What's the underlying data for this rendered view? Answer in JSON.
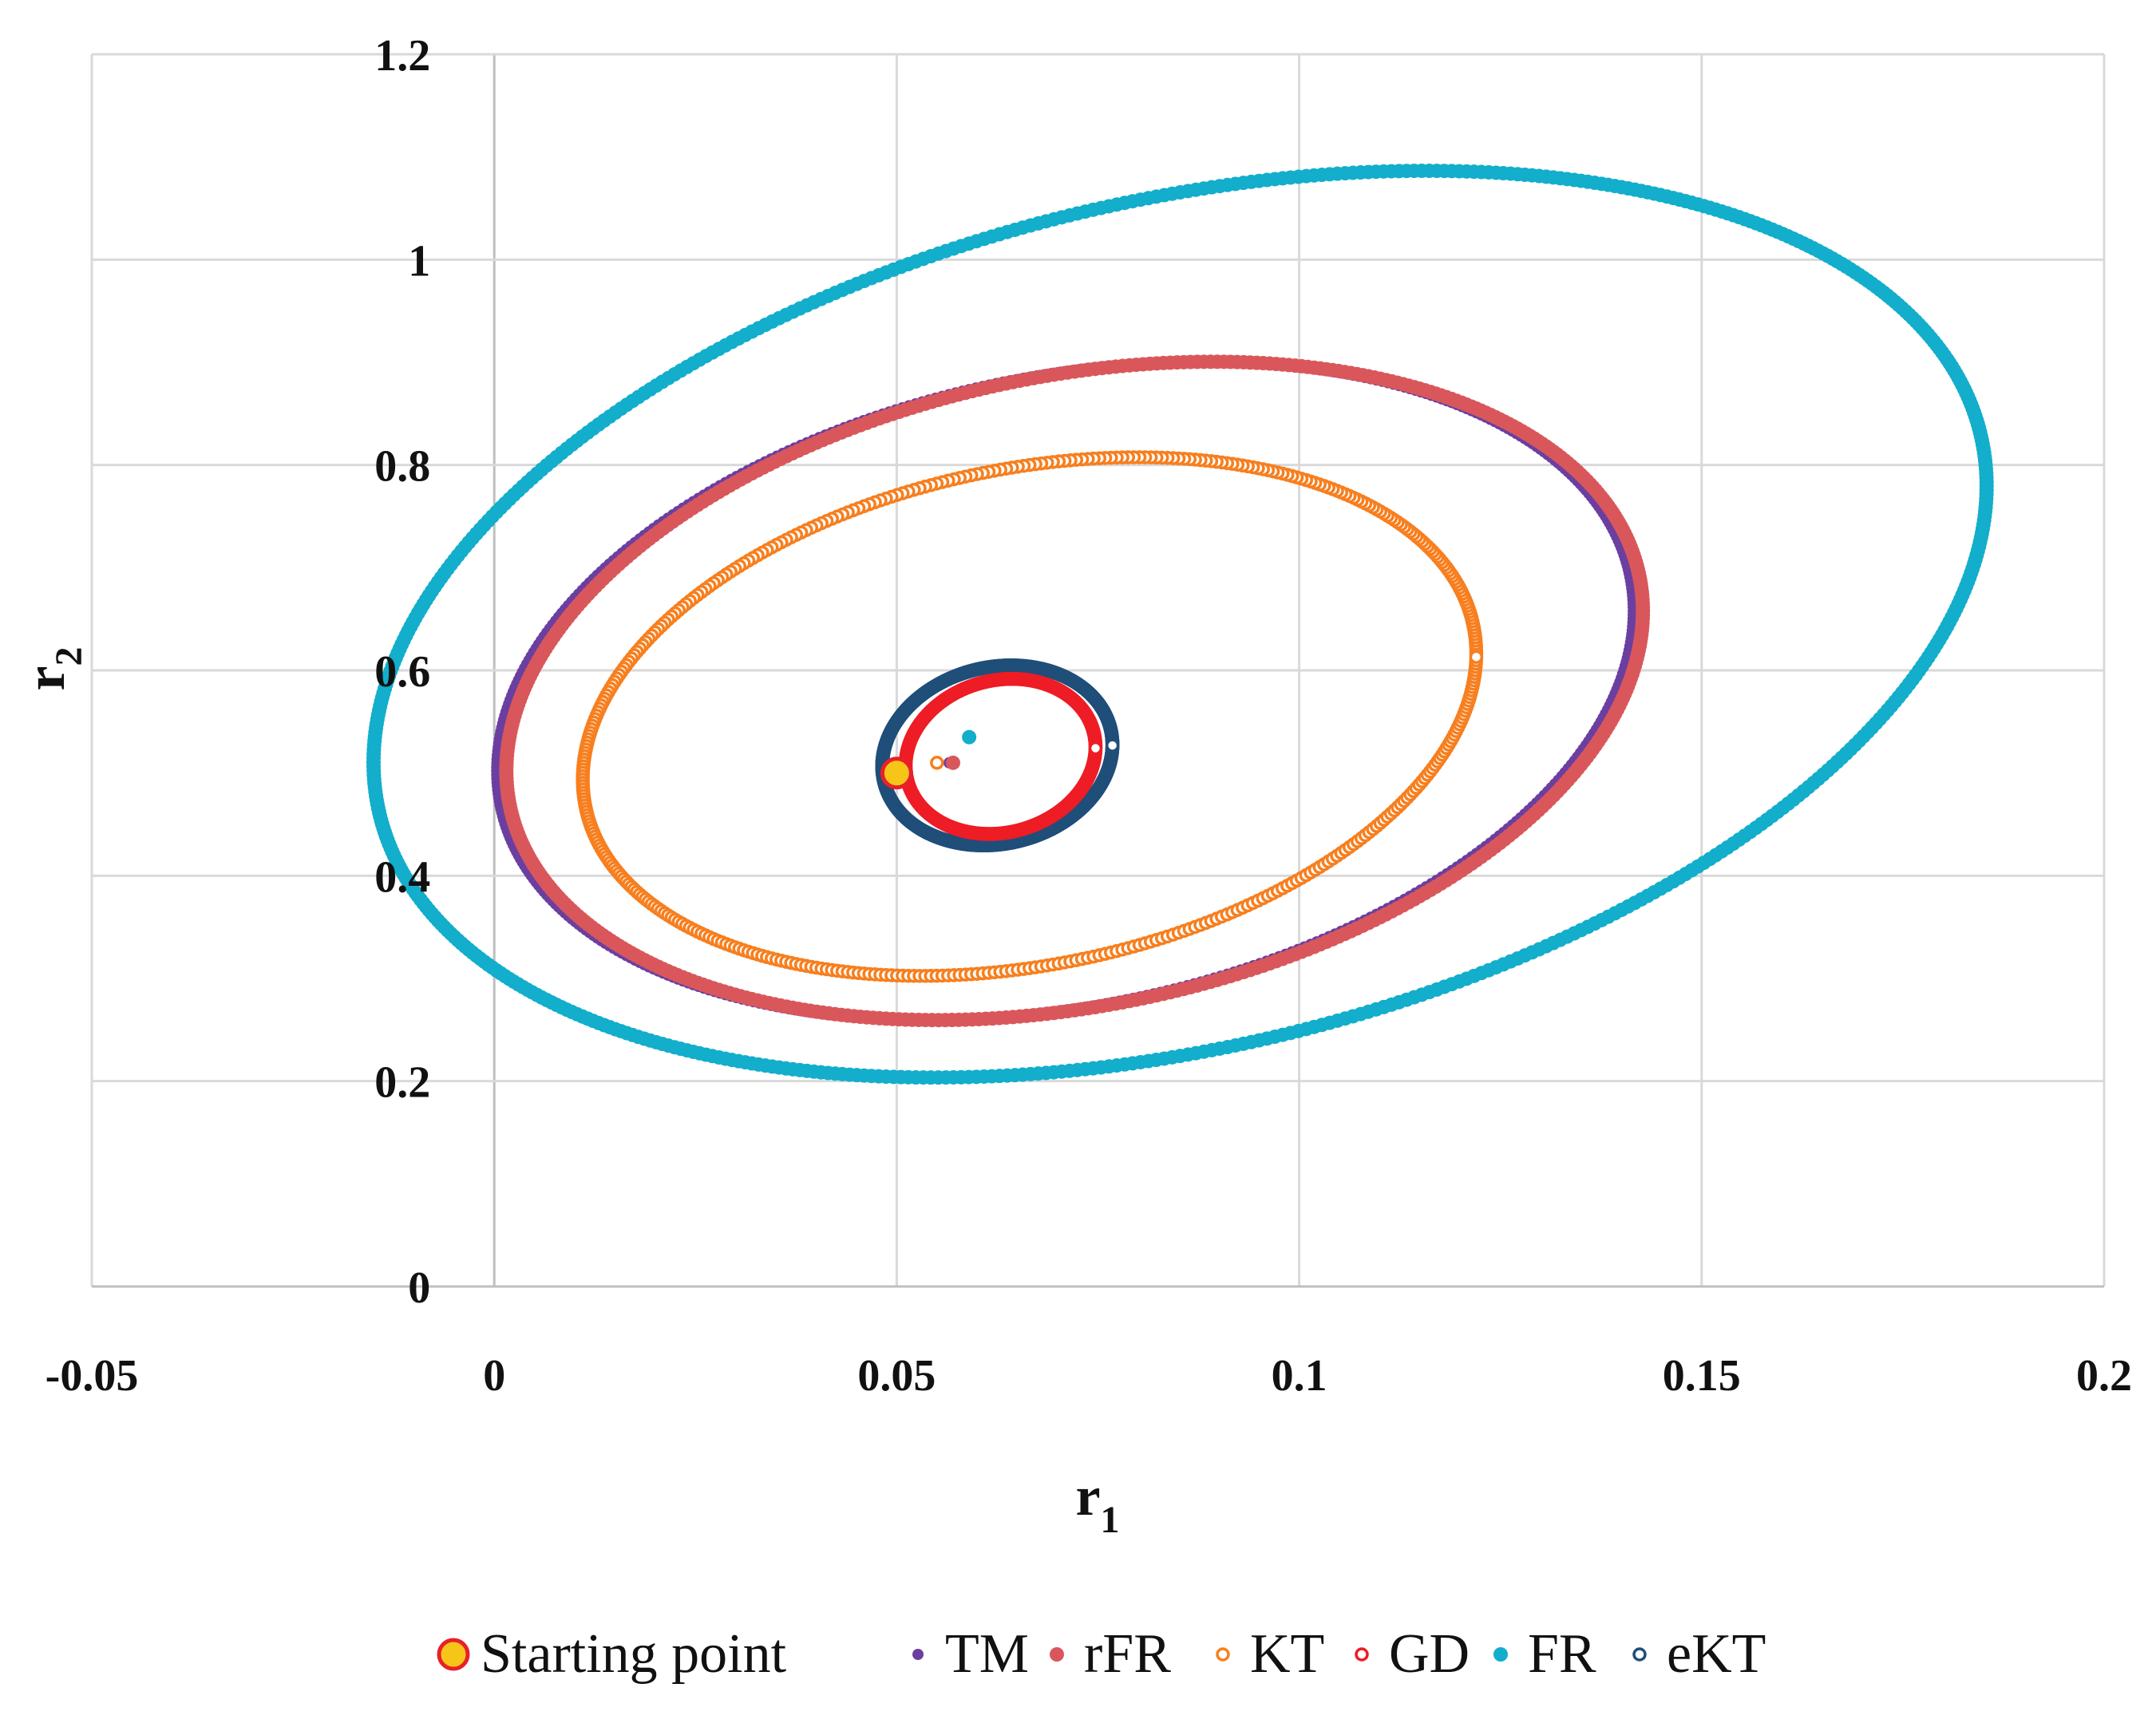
{
  "chart_data": {
    "type": "scatter",
    "title": "",
    "xlabel": "r",
    "xlabel_sub": "1",
    "ylabel": "r",
    "ylabel_sub": "2",
    "xlim": [
      -0.05,
      0.2
    ],
    "ylim": [
      0,
      1.2
    ],
    "x_ticks": [
      -0.05,
      0,
      0.05,
      0.1,
      0.15,
      0.2
    ],
    "y_ticks": [
      0,
      0.2,
      0.4,
      0.6,
      0.8,
      1,
      1.2
    ],
    "x_tick_labels": [
      "-0.05",
      "0",
      "0.05",
      "0.1",
      "0.15",
      "0.2"
    ],
    "y_tick_labels": [
      "0",
      "0.2",
      "0.4",
      "0.6",
      "0.8",
      "1",
      "1.2"
    ],
    "grid": true,
    "legend_position": "bottom",
    "series": [
      {
        "name": "Starting point",
        "marker": "circle",
        "fill": "#F5C518",
        "edge": "#E8202A",
        "size": "large",
        "x": [
          0.05
        ],
        "y": [
          0.5
        ]
      },
      {
        "name": "TM",
        "marker": "dot",
        "fill": "#6B3FA0",
        "edge": "#6B3FA0",
        "size": "small",
        "center_x": 0.0709,
        "center_y": 0.58,
        "radius_x": 0.0706,
        "radius_y": 0.311,
        "tilt": 0.25,
        "n_points": 520,
        "stray_points": {
          "x": [
            0.0565
          ],
          "y": [
            0.51
          ]
        }
      },
      {
        "name": "rFR",
        "marker": "dot",
        "fill": "#D9575B",
        "edge": "#D9575B",
        "size": "medium",
        "center_x": 0.0721,
        "center_y": 0.58,
        "radius_x": 0.0706,
        "radius_y": 0.311,
        "tilt": 0.25,
        "n_points": 520,
        "stray_points": {
          "x": [
            0.057
          ],
          "y": [
            0.51
          ]
        }
      },
      {
        "name": "KT",
        "marker": "ring",
        "fill": "#ffffff",
        "edge": "#F77F1F",
        "size": "small",
        "center_x": 0.0665,
        "center_y": 0.555,
        "radius_x": 0.0555,
        "radius_y": 0.245,
        "tilt": 0.25,
        "n_points": 480,
        "stray_points": {
          "x": [
            0.055
          ],
          "y": [
            0.51
          ]
        }
      },
      {
        "name": "GD",
        "marker": "ring",
        "fill": "#ffffff",
        "edge": "#EE1C25",
        "size": "small",
        "center_x": 0.0629,
        "center_y": 0.5162,
        "radius_x": 0.0118,
        "radius_y": 0.075,
        "tilt": 0.12,
        "n_points": 460,
        "stray_points": {
          "x": [],
          "y": []
        }
      },
      {
        "name": "FR",
        "marker": "dot",
        "fill": "#12AECB",
        "edge": "#12AECB",
        "size": "medium",
        "center_x": 0.0852,
        "center_y": 0.645,
        "radius_x": 0.1002,
        "radius_y": 0.4205,
        "tilt": 0.32,
        "n_points": 640,
        "stray_points": {
          "x": [
            0.059
          ],
          "y": [
            0.535
          ]
        }
      },
      {
        "name": "eKT",
        "marker": "ring",
        "fill": "#ffffff",
        "edge": "#1F4E79",
        "size": "small",
        "center_x": 0.0625,
        "center_y": 0.5172,
        "radius_x": 0.0143,
        "radius_y": 0.087,
        "tilt": 0.12,
        "n_points": 720,
        "stray_points": {
          "x": [
            0.049
          ],
          "y": [
            0.5
          ]
        }
      }
    ]
  }
}
